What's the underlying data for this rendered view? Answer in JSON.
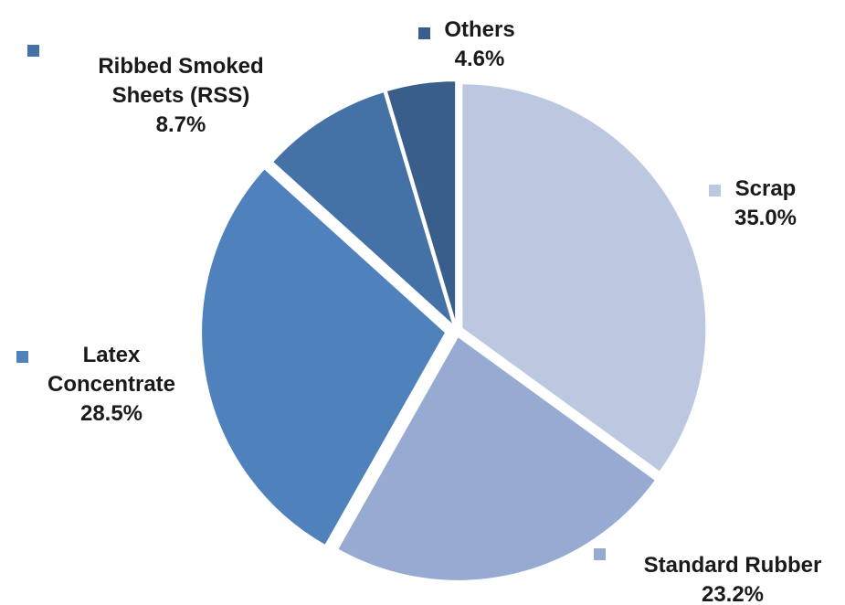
{
  "chart_data": {
    "type": "pie",
    "title": "",
    "slices": [
      {
        "label_lines": [
          "Scrap"
        ],
        "value": 35.0,
        "value_label": "35.0%",
        "color": "#bcc8e0"
      },
      {
        "label_lines": [
          "Standard Rubber"
        ],
        "value": 23.2,
        "value_label": "23.2%",
        "color": "#97aad2"
      },
      {
        "label_lines": [
          "Latex",
          "Concentrate"
        ],
        "value": 28.5,
        "value_label": "28.5%",
        "color": "#4f81bd"
      },
      {
        "label_lines": [
          "Ribbed Smoked",
          "Sheets (RSS)"
        ],
        "value": 8.7,
        "value_label": "8.7%",
        "color": "#4471a6"
      },
      {
        "label_lines": [
          "Others"
        ],
        "value": 4.6,
        "value_label": "4.6%",
        "color": "#3a5e8c"
      }
    ],
    "legend": "labels placed next to each slice with color markers",
    "exploded": true,
    "start_angle": "12 o'clock",
    "direction": "clockwise"
  }
}
